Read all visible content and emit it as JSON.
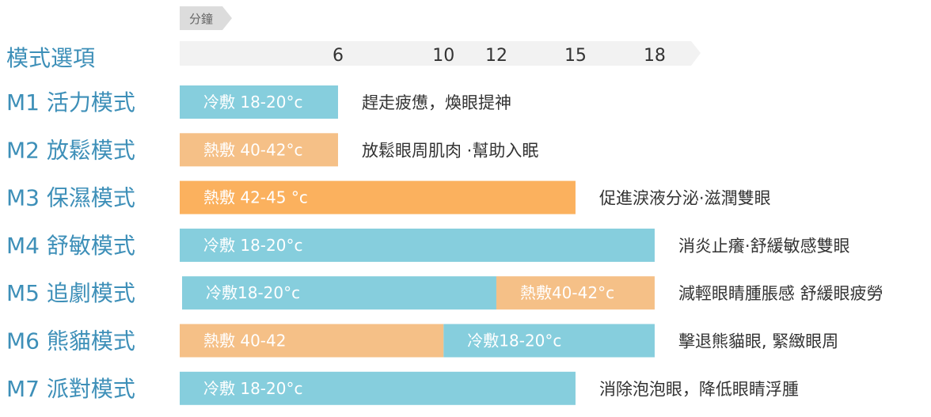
{
  "colors": {
    "cold": "#86cedd",
    "warm_light": "#f5c087",
    "warm_strong": "#fbb15e",
    "axis_band": "#f2f2f2",
    "unit_tab": "#dcdcdc",
    "mode_text": "#3d8fb8"
  },
  "chart_data": {
    "type": "bar",
    "orientation": "horizontal-stacked",
    "header": "模式選項",
    "unit": "分鐘",
    "x_ticks": [
      6,
      10,
      12,
      15,
      18
    ],
    "xlim": [
      0,
      18
    ],
    "modes": [
      {
        "name": "M1 活力模式",
        "segments": [
          {
            "label": "冷敷 18-20°c",
            "start": 0,
            "end": 6,
            "kind": "cold"
          }
        ],
        "description": "趕走疲憊，煥眼提神"
      },
      {
        "name": "M2 放鬆模式",
        "segments": [
          {
            "label": "熱敷 40-42°c",
            "start": 0,
            "end": 6,
            "kind": "warm_light"
          }
        ],
        "description": "放鬆眼周肌肉 ·幫助入眠"
      },
      {
        "name": "M3 保濕模式",
        "segments": [
          {
            "label": "熱敷 42-45 °c",
            "start": 0,
            "end": 15,
            "kind": "warm_strong"
          }
        ],
        "description": "促進淚液分泌·滋潤雙眼"
      },
      {
        "name": "M4 舒敏模式",
        "segments": [
          {
            "label": "冷敷 18-20°c",
            "start": 0,
            "end": 18,
            "kind": "cold"
          }
        ],
        "description": "消炎止癢·舒緩敏感雙眼"
      },
      {
        "name": "M5 追劇模式",
        "segments": [
          {
            "label": "冷敷18-20°c",
            "start": 0,
            "end": 12,
            "kind": "cold"
          },
          {
            "label": "熱敷40-42°c",
            "start": 12,
            "end": 18,
            "kind": "warm_light"
          }
        ],
        "description": "減輕眼睛腫脹感 舒緩眼疲勞"
      },
      {
        "name": "M6 熊貓模式",
        "segments": [
          {
            "label": "熱敷 40-42",
            "start": 0,
            "end": 10,
            "kind": "warm_light"
          },
          {
            "label": "冷敷18-20°c",
            "start": 10,
            "end": 18,
            "kind": "cold"
          }
        ],
        "description": "擊退熊貓眼, 緊緻眼周"
      },
      {
        "name": "M7 派對模式",
        "segments": [
          {
            "label": "冷敷 18-20°c",
            "start": 0,
            "end": 15,
            "kind": "cold"
          }
        ],
        "description": "消除泡泡眼，降低眼睛浮腫"
      }
    ]
  }
}
